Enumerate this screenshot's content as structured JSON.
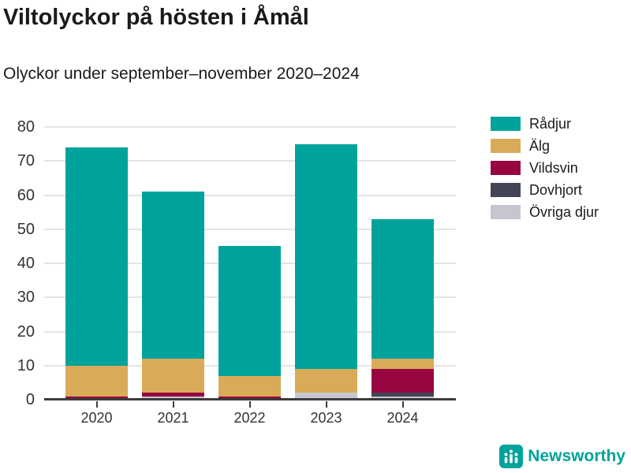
{
  "title": "Viltolyckor på hösten i Åmål",
  "subtitle": "Olyckor under september–november 2020–2024",
  "branding": {
    "name": "Newsworthy",
    "color": "#00a39b",
    "icon": "newsworthy-bar-chart-logo"
  },
  "colors": {
    "background": "#ffffff",
    "text": "#1a1a1a",
    "axis_text": "#333333",
    "gridline": "#e4e4e4",
    "axis_line": "#3c3c3c"
  },
  "chart_data": {
    "type": "bar",
    "stacked": true,
    "title": "Viltolyckor på hösten i Åmål",
    "subtitle": "Olyckor under september–november 2020–2024",
    "categories": [
      "2020",
      "2021",
      "2022",
      "2023",
      "2024"
    ],
    "series": [
      {
        "name": "Rådjur",
        "color": "#00a39b",
        "values": [
          64,
          49,
          38,
          66,
          41
        ]
      },
      {
        "name": "Älg",
        "color": "#d9ab59",
        "values": [
          9,
          10,
          6,
          7,
          3
        ]
      },
      {
        "name": "Vildsvin",
        "color": "#970640",
        "values": [
          1,
          1,
          1,
          0,
          7
        ]
      },
      {
        "name": "Dovhjort",
        "color": "#434456",
        "values": [
          0,
          0,
          0,
          0,
          1
        ]
      },
      {
        "name": "Övriga djur",
        "color": "#c6c6d0",
        "values": [
          0,
          1,
          0,
          2,
          1
        ]
      }
    ],
    "totals": [
      74,
      61,
      45,
      75,
      53
    ],
    "xlabel": "",
    "ylabel": "",
    "ylim": [
      0,
      80
    ],
    "yticks": [
      0,
      10,
      20,
      30,
      40,
      50,
      60,
      70,
      80
    ],
    "grid": true,
    "legend_position": "right",
    "stack_order": "legend order top-to-bottom equals stack top-to-bottom"
  }
}
